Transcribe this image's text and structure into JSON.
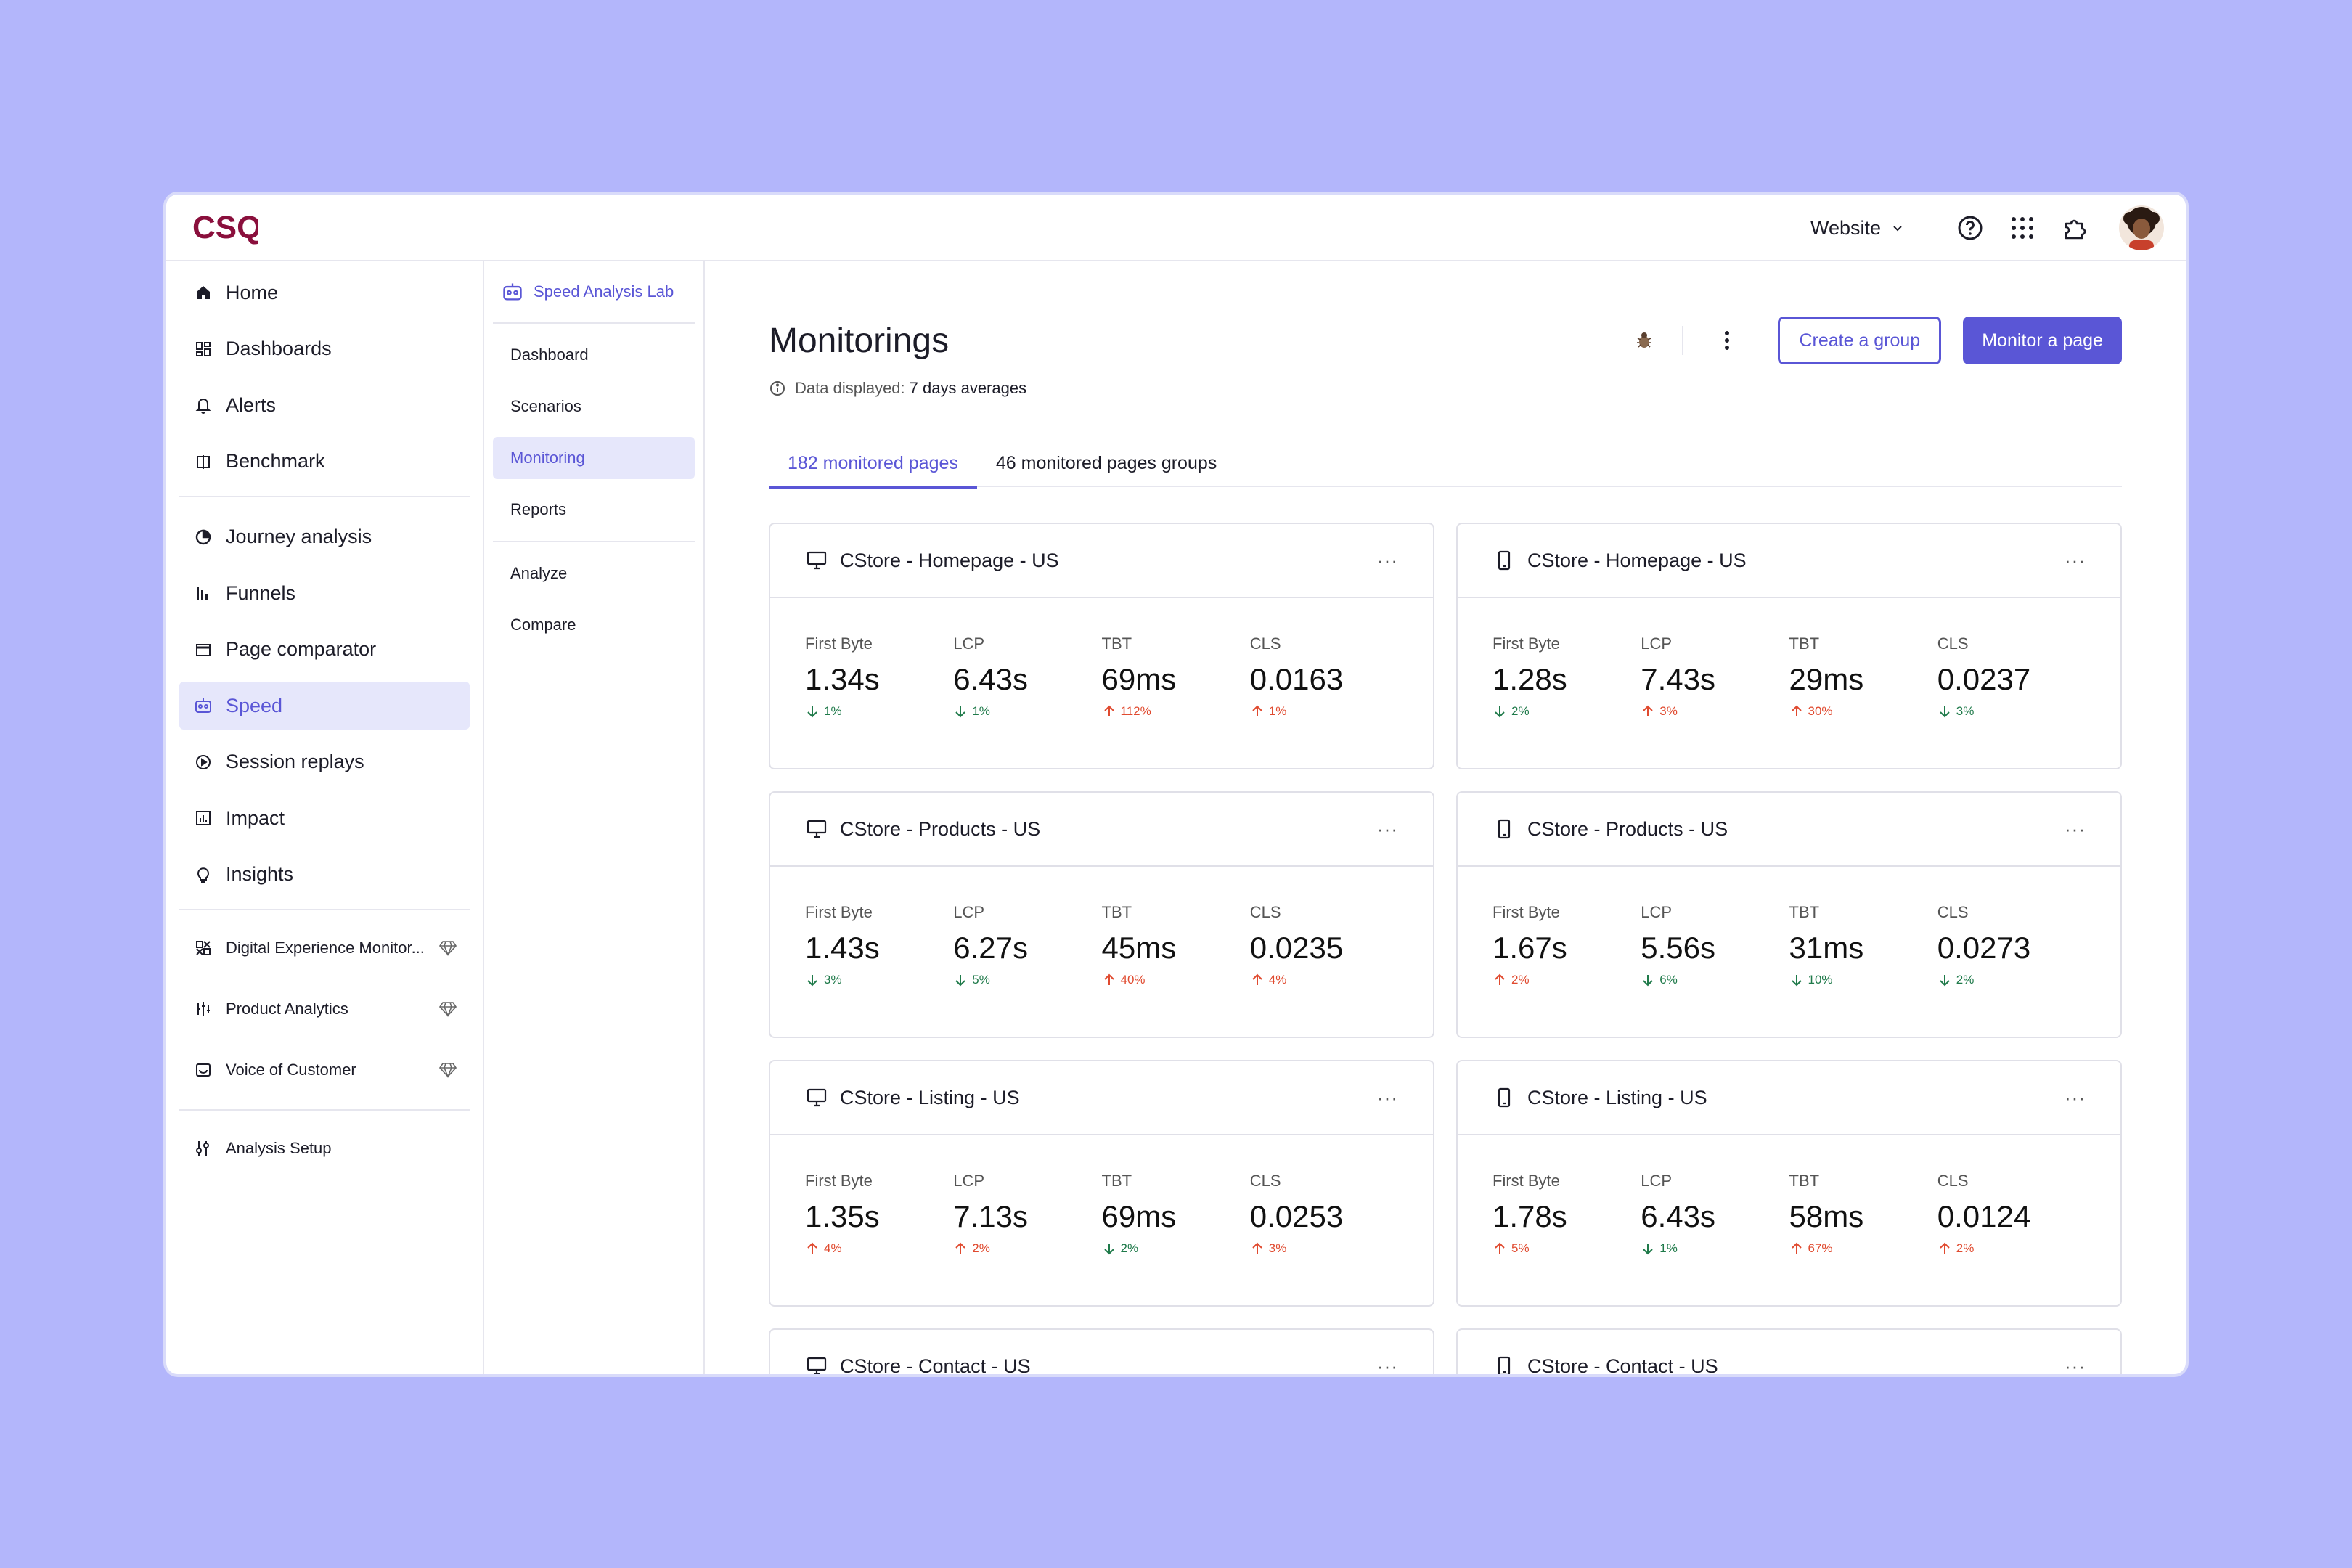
{
  "app": {
    "logo_text": "CSQ",
    "brand_color": "#8a0f3c",
    "accent": "#5a56d6"
  },
  "topbar": {
    "selector_label": "Website"
  },
  "sidebar": {
    "primary": [
      {
        "label": "Home",
        "icon": "home-icon"
      },
      {
        "label": "Dashboards",
        "icon": "dashboard-icon"
      },
      {
        "label": "Alerts",
        "icon": "bell-icon"
      },
      {
        "label": "Benchmark",
        "icon": "benchmark-icon"
      }
    ],
    "analysis": [
      {
        "label": "Journey analysis",
        "icon": "journey-icon"
      },
      {
        "label": "Funnels",
        "icon": "funnel-icon"
      },
      {
        "label": "Page comparator",
        "icon": "page-icon"
      },
      {
        "label": "Speed",
        "icon": "speed-icon",
        "active": true
      },
      {
        "label": "Session replays",
        "icon": "play-icon"
      },
      {
        "label": "Impact",
        "icon": "impact-icon"
      },
      {
        "label": "Insights",
        "icon": "bulb-icon"
      }
    ],
    "products": [
      {
        "label": "Digital Experience Monitor...",
        "icon": "dem-icon"
      },
      {
        "label": "Product Analytics",
        "icon": "analytics-icon"
      },
      {
        "label": "Voice of Customer",
        "icon": "voc-icon"
      }
    ],
    "setup": [
      {
        "label": "Analysis Setup",
        "icon": "setup-icon"
      }
    ]
  },
  "subnav": {
    "header": "Speed Analysis Lab",
    "items": [
      "Dashboard",
      "Scenarios",
      "Monitoring",
      "Reports"
    ],
    "items2": [
      "Analyze",
      "Compare"
    ]
  },
  "main": {
    "title": "Monitorings",
    "data_label": "Data displayed:",
    "data_value": "7 days averages",
    "create_group": "Create a group",
    "monitor_page": "Monitor a page",
    "tabs": [
      "182 monitored pages",
      "46 monitored pages groups"
    ]
  },
  "cards": [
    {
      "title": "CStore - Homepage - US",
      "device": "desktop",
      "metrics": [
        {
          "label": "First Byte",
          "value": "1.34s",
          "delta": "1%",
          "dir": "down"
        },
        {
          "label": "LCP",
          "value": "6.43s",
          "delta": "1%",
          "dir": "down"
        },
        {
          "label": "TBT",
          "value": "69ms",
          "delta": "112%",
          "dir": "up"
        },
        {
          "label": "CLS",
          "value": "0.0163",
          "delta": "1%",
          "dir": "up"
        }
      ]
    },
    {
      "title": "CStore - Homepage - US",
      "device": "mobile",
      "metrics": [
        {
          "label": "First Byte",
          "value": "1.28s",
          "delta": "2%",
          "dir": "down"
        },
        {
          "label": "LCP",
          "value": "7.43s",
          "delta": "3%",
          "dir": "up"
        },
        {
          "label": "TBT",
          "value": "29ms",
          "delta": "30%",
          "dir": "up"
        },
        {
          "label": "CLS",
          "value": "0.0237",
          "delta": "3%",
          "dir": "down"
        }
      ]
    },
    {
      "title": "CStore - Products - US",
      "device": "desktop",
      "metrics": [
        {
          "label": "First Byte",
          "value": "1.43s",
          "delta": "3%",
          "dir": "down"
        },
        {
          "label": "LCP",
          "value": "6.27s",
          "delta": "5%",
          "dir": "down"
        },
        {
          "label": "TBT",
          "value": "45ms",
          "delta": "40%",
          "dir": "up"
        },
        {
          "label": "CLS",
          "value": "0.0235",
          "delta": "4%",
          "dir": "up"
        }
      ]
    },
    {
      "title": "CStore - Products - US",
      "device": "mobile",
      "metrics": [
        {
          "label": "First Byte",
          "value": "1.67s",
          "delta": "2%",
          "dir": "up"
        },
        {
          "label": "LCP",
          "value": "5.56s",
          "delta": "6%",
          "dir": "down"
        },
        {
          "label": "TBT",
          "value": "31ms",
          "delta": "10%",
          "dir": "down"
        },
        {
          "label": "CLS",
          "value": "0.0273",
          "delta": "2%",
          "dir": "down"
        }
      ]
    },
    {
      "title": "CStore - Listing - US",
      "device": "desktop",
      "metrics": [
        {
          "label": "First Byte",
          "value": "1.35s",
          "delta": "4%",
          "dir": "up"
        },
        {
          "label": "LCP",
          "value": "7.13s",
          "delta": "2%",
          "dir": "up"
        },
        {
          "label": "TBT",
          "value": "69ms",
          "delta": "2%",
          "dir": "down"
        },
        {
          "label": "CLS",
          "value": "0.0253",
          "delta": "3%",
          "dir": "up"
        }
      ]
    },
    {
      "title": "CStore - Listing - US",
      "device": "mobile",
      "metrics": [
        {
          "label": "First Byte",
          "value": "1.78s",
          "delta": "5%",
          "dir": "up"
        },
        {
          "label": "LCP",
          "value": "6.43s",
          "delta": "1%",
          "dir": "down"
        },
        {
          "label": "TBT",
          "value": "58ms",
          "delta": "67%",
          "dir": "up"
        },
        {
          "label": "CLS",
          "value": "0.0124",
          "delta": "2%",
          "dir": "up"
        }
      ]
    },
    {
      "title": "CStore - Contact - US",
      "device": "desktop",
      "metrics": []
    },
    {
      "title": "CStore - Contact - US",
      "device": "mobile",
      "metrics": []
    }
  ]
}
